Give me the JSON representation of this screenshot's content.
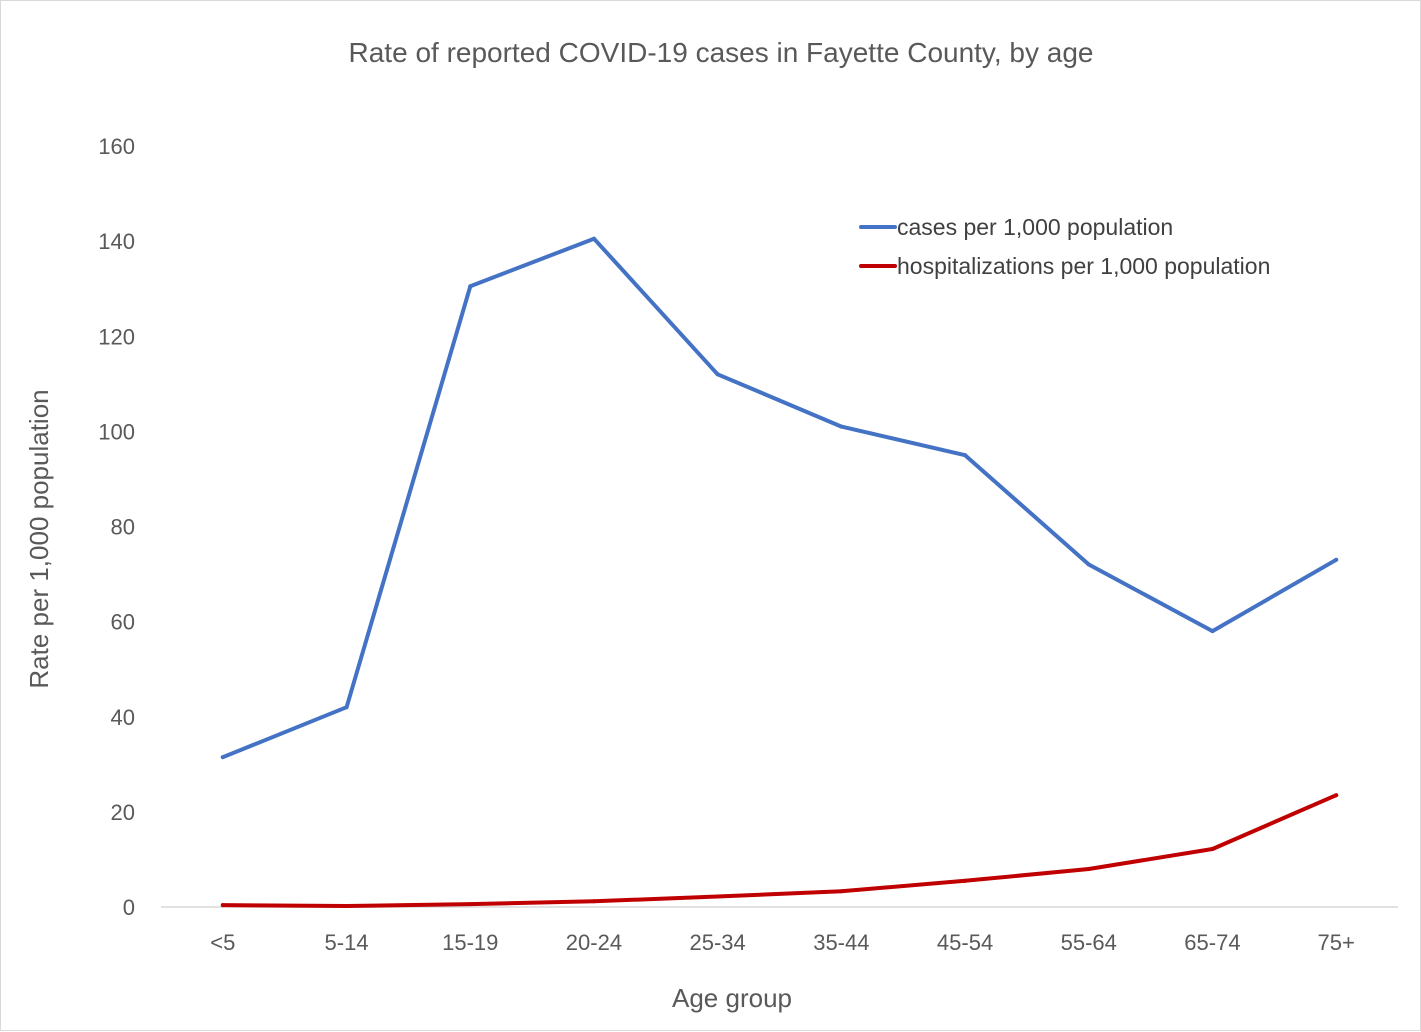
{
  "chart_data": {
    "type": "line",
    "title": "Rate of reported COVID-19 cases in Fayette County, by age",
    "xlabel": "Age group",
    "ylabel": "Rate per 1,000 population",
    "categories": [
      "<5",
      "5-14",
      "15-19",
      "20-24",
      "25-34",
      "35-44",
      "45-54",
      "55-64",
      "65-74",
      "75+"
    ],
    "ylim": [
      0,
      160
    ],
    "yticks": [
      0,
      20,
      40,
      60,
      80,
      100,
      120,
      140,
      160
    ],
    "grid": false,
    "legend_position": "top-right",
    "series": [
      {
        "name": "cases per 1,000 population",
        "color": "#4472c4",
        "values": [
          31.5,
          42,
          130.5,
          140.5,
          112,
          101,
          95,
          72,
          58,
          73
        ]
      },
      {
        "name": "hospitalizations per 1,000 population",
        "color": "#c00000",
        "values": [
          0.4,
          0.2,
          0.6,
          1.2,
          2.2,
          3.3,
          5.5,
          8,
          12.2,
          23.5
        ]
      }
    ]
  }
}
